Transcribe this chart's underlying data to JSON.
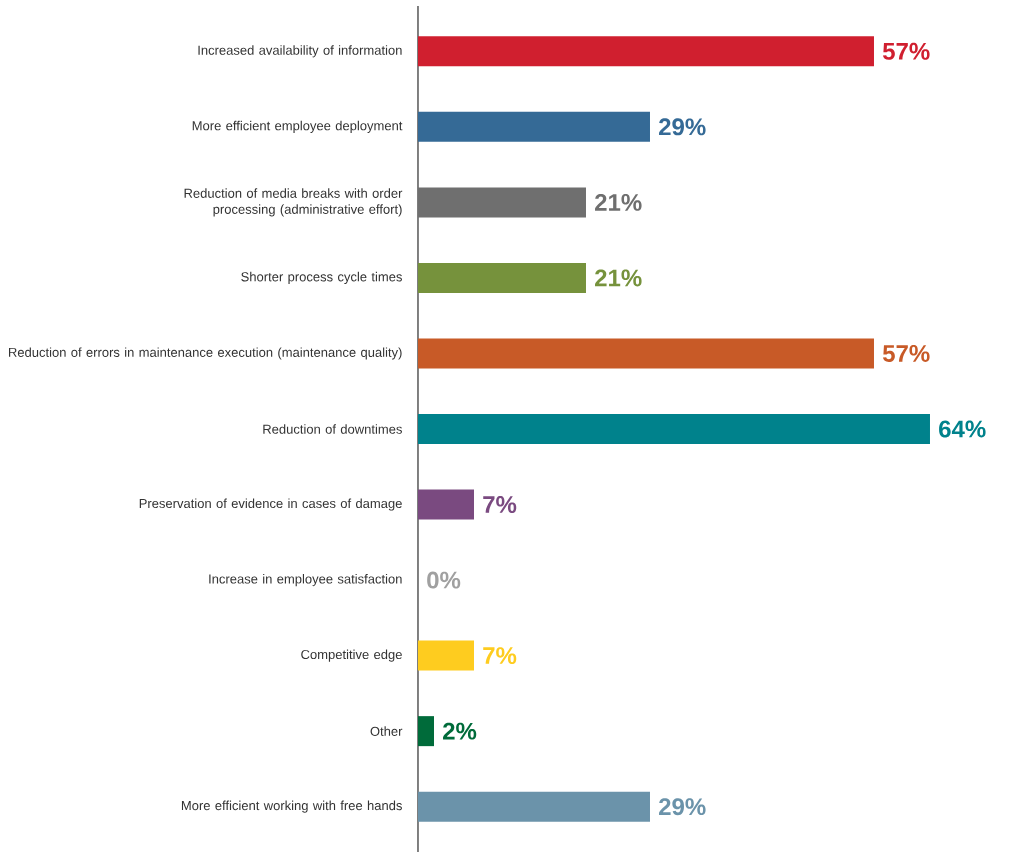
{
  "chart_data": {
    "type": "bar",
    "orientation": "horizontal",
    "categories": [
      "Increased availability of information",
      "More efficient employee deployment",
      "Reduction of media breaks with order processing (administrative effort)",
      "Shorter process cycle times",
      "Reduction of errors in maintenance execution (maintenance quality)",
      "Reduction of downtimes",
      "Preservation of evidence in cases of damage",
      "Increase in employee satisfaction",
      "Competitive edge",
      "Other",
      "More efficient working with free hands"
    ],
    "values": [
      57,
      29,
      21,
      21,
      57,
      64,
      7,
      0,
      7,
      2,
      29
    ],
    "value_labels": [
      "57%",
      "29%",
      "21%",
      "21%",
      "57%",
      "64%",
      "7%",
      "0%",
      "7%",
      "2%",
      "29%"
    ],
    "colors": [
      "#d01f2f",
      "#356a96",
      "#6f6f6f",
      "#76923c",
      "#c85a27",
      "#00828c",
      "#7a4a80",
      "#a0a0a0",
      "#fecc1f",
      "#006b3a",
      "#6b93aa"
    ]
  }
}
